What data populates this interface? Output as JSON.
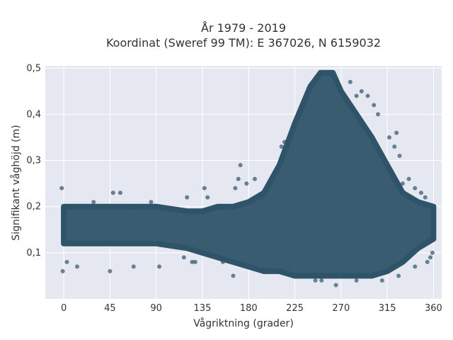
{
  "chart_data": {
    "type": "scatter",
    "title_line1": "År 1979 - 2019",
    "title_line2": "Koordinat (Sweref 99 TM): E 367026, N 6159032",
    "xlabel": "Vågriktning (grader)",
    "ylabel": "Signifikant våghöjd (m)",
    "xlim": [
      -18,
      368
    ],
    "ylim": [
      0.0,
      0.505
    ],
    "x_ticks": [
      0,
      45,
      90,
      135,
      180,
      225,
      270,
      315,
      360
    ],
    "y_ticks": [
      0.1,
      0.2,
      0.3,
      0.4,
      0.5
    ],
    "y_tick_labels": [
      "0,1",
      "0,2",
      "0,3",
      "0,4",
      "0,5"
    ],
    "grid": true,
    "marker_color": "#2f5469",
    "plot_background": "#e5e8f0",
    "envelope": [
      {
        "x": 0,
        "lo": 0.12,
        "hi": 0.2
      },
      {
        "x": 45,
        "lo": 0.12,
        "hi": 0.2
      },
      {
        "x": 90,
        "lo": 0.12,
        "hi": 0.2
      },
      {
        "x": 120,
        "lo": 0.11,
        "hi": 0.19
      },
      {
        "x": 135,
        "lo": 0.1,
        "hi": 0.19
      },
      {
        "x": 150,
        "lo": 0.09,
        "hi": 0.2
      },
      {
        "x": 165,
        "lo": 0.08,
        "hi": 0.2
      },
      {
        "x": 180,
        "lo": 0.07,
        "hi": 0.21
      },
      {
        "x": 195,
        "lo": 0.06,
        "hi": 0.23
      },
      {
        "x": 210,
        "lo": 0.06,
        "hi": 0.29
      },
      {
        "x": 225,
        "lo": 0.05,
        "hi": 0.38
      },
      {
        "x": 240,
        "lo": 0.05,
        "hi": 0.46
      },
      {
        "x": 250,
        "lo": 0.05,
        "hi": 0.49
      },
      {
        "x": 262,
        "lo": 0.05,
        "hi": 0.49
      },
      {
        "x": 270,
        "lo": 0.05,
        "hi": 0.45
      },
      {
        "x": 285,
        "lo": 0.05,
        "hi": 0.4
      },
      {
        "x": 300,
        "lo": 0.05,
        "hi": 0.35
      },
      {
        "x": 315,
        "lo": 0.06,
        "hi": 0.29
      },
      {
        "x": 330,
        "lo": 0.08,
        "hi": 0.23
      },
      {
        "x": 345,
        "lo": 0.11,
        "hi": 0.21
      },
      {
        "x": 360,
        "lo": 0.13,
        "hi": 0.2
      }
    ],
    "outliers": [
      [
        -2,
        0.24
      ],
      [
        -1,
        0.06
      ],
      [
        3,
        0.08
      ],
      [
        13,
        0.07
      ],
      [
        29,
        0.21
      ],
      [
        45,
        0.06
      ],
      [
        48,
        0.23
      ],
      [
        55,
        0.23
      ],
      [
        68,
        0.07
      ],
      [
        85,
        0.21
      ],
      [
        93,
        0.07
      ],
      [
        117,
        0.09
      ],
      [
        120,
        0.22
      ],
      [
        125,
        0.08
      ],
      [
        128,
        0.08
      ],
      [
        137,
        0.24
      ],
      [
        140,
        0.22
      ],
      [
        155,
        0.08
      ],
      [
        165,
        0.05
      ],
      [
        167,
        0.24
      ],
      [
        170,
        0.26
      ],
      [
        172,
        0.29
      ],
      [
        178,
        0.25
      ],
      [
        186,
        0.26
      ],
      [
        193,
        0.22
      ],
      [
        212,
        0.33
      ],
      [
        215,
        0.34
      ],
      [
        228,
        0.4
      ],
      [
        236,
        0.44
      ],
      [
        245,
        0.04
      ],
      [
        251,
        0.04
      ],
      [
        265,
        0.03
      ],
      [
        279,
        0.47
      ],
      [
        285,
        0.44
      ],
      [
        290,
        0.45
      ],
      [
        296,
        0.44
      ],
      [
        302,
        0.42
      ],
      [
        306,
        0.4
      ],
      [
        317,
        0.35
      ],
      [
        322,
        0.33
      ],
      [
        324,
        0.36
      ],
      [
        327,
        0.31
      ],
      [
        330,
        0.25
      ],
      [
        336,
        0.26
      ],
      [
        342,
        0.24
      ],
      [
        348,
        0.23
      ],
      [
        352,
        0.22
      ],
      [
        357,
        0.09
      ],
      [
        359,
        0.1
      ],
      [
        354,
        0.08
      ],
      [
        342,
        0.07
      ],
      [
        326,
        0.05
      ],
      [
        310,
        0.04
      ],
      [
        285,
        0.04
      ]
    ]
  }
}
